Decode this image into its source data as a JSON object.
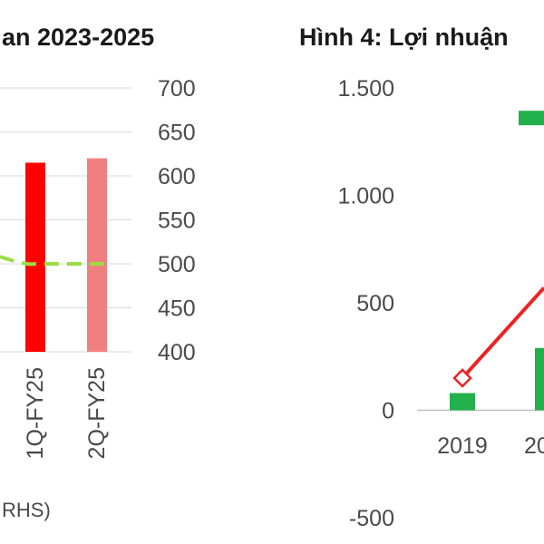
{
  "chart_data": [
    {
      "type": "bar",
      "title": "an 2023-2025",
      "legend_text": "RHS)",
      "categories": [
        "1Q-FY25",
        "2Q-FY25"
      ],
      "series": [
        {
          "values": [
            615,
            620
          ],
          "colors": [
            "#ff0000",
            "#f08080"
          ]
        },
        {
          "type": "line",
          "style": "dashed",
          "values": [
            500,
            500
          ],
          "color": "#99dd44"
        }
      ],
      "y_right": {
        "ticks": [
          700,
          650,
          600,
          550,
          500,
          450,
          400
        ],
        "ylim": [
          400,
          700
        ]
      },
      "grid": true
    },
    {
      "type": "bar",
      "title": "Hình 4: Lợi nhuận",
      "categories": [
        "2019",
        "20"
      ],
      "series": [
        {
          "values": [
            80,
            1360
          ],
          "color": "#22b04a"
        },
        {
          "values": [
            null,
            290
          ],
          "color": "#22b04a"
        },
        {
          "type": "line",
          "values": [
            150,
            570
          ],
          "color": "#ee2222",
          "marker": "diamond"
        }
      ],
      "y_left": {
        "ticks": [
          "1.500",
          "1.000",
          "500",
          "0",
          "-500"
        ],
        "tick_values": [
          1500,
          1000,
          500,
          0,
          -500
        ],
        "ylim": [
          -500,
          1500
        ]
      },
      "grid": false
    }
  ]
}
